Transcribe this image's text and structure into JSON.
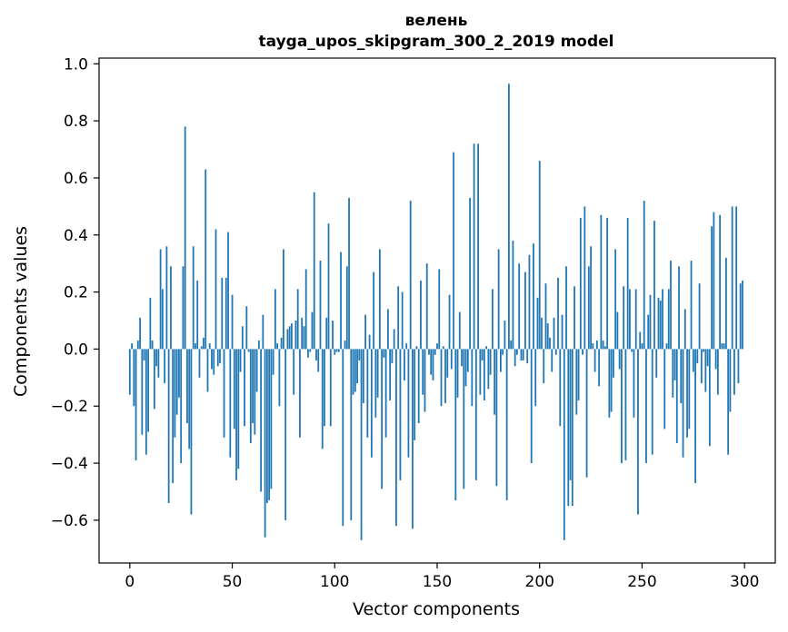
{
  "chart_data": {
    "type": "bar",
    "title": "велень",
    "subtitle": "tayga_upos_skipgram_300_2_2019 model",
    "xlabel": "Vector components",
    "ylabel": "Components values",
    "xlim": [
      -15,
      315
    ],
    "ylim": [
      -0.75,
      1.02
    ],
    "xticks": [
      0,
      50,
      100,
      150,
      200,
      250,
      300
    ],
    "xtick_labels": [
      "0",
      "50",
      "100",
      "150",
      "200",
      "250",
      "300"
    ],
    "yticks": [
      -0.6,
      -0.4,
      -0.2,
      0.0,
      0.2,
      0.4,
      0.6,
      0.8,
      1.0
    ],
    "ytick_labels": [
      "−0.6",
      "−0.4",
      "−0.2",
      "0.0",
      "0.2",
      "0.4",
      "0.6",
      "0.8",
      "1.0"
    ],
    "grid": false,
    "bar_color": "#1f77b4",
    "x": [
      0,
      1,
      2,
      3,
      4,
      5,
      6,
      7,
      8,
      9,
      10,
      11,
      12,
      13,
      14,
      15,
      16,
      17,
      18,
      19,
      20,
      21,
      22,
      23,
      24,
      25,
      26,
      27,
      28,
      29,
      30,
      31,
      32,
      33,
      34,
      35,
      36,
      37,
      38,
      39,
      40,
      41,
      42,
      43,
      44,
      45,
      46,
      47,
      48,
      49,
      50,
      51,
      52,
      53,
      54,
      55,
      56,
      57,
      58,
      59,
      60,
      61,
      62,
      63,
      64,
      65,
      66,
      67,
      68,
      69,
      70,
      71,
      72,
      73,
      74,
      75,
      76,
      77,
      78,
      79,
      80,
      81,
      82,
      83,
      84,
      85,
      86,
      87,
      88,
      89,
      90,
      91,
      92,
      93,
      94,
      95,
      96,
      97,
      98,
      99,
      100,
      101,
      102,
      103,
      104,
      105,
      106,
      107,
      108,
      109,
      110,
      111,
      112,
      113,
      114,
      115,
      116,
      117,
      118,
      119,
      120,
      121,
      122,
      123,
      124,
      125,
      126,
      127,
      128,
      129,
      130,
      131,
      132,
      133,
      134,
      135,
      136,
      137,
      138,
      139,
      140,
      141,
      142,
      143,
      144,
      145,
      146,
      147,
      148,
      149,
      150,
      151,
      152,
      153,
      154,
      155,
      156,
      157,
      158,
      159,
      160,
      161,
      162,
      163,
      164,
      165,
      166,
      167,
      168,
      169,
      170,
      171,
      172,
      173,
      174,
      175,
      176,
      177,
      178,
      179,
      180,
      181,
      182,
      183,
      184,
      185,
      186,
      187,
      188,
      189,
      190,
      191,
      192,
      193,
      194,
      195,
      196,
      197,
      198,
      199,
      200,
      201,
      202,
      203,
      204,
      205,
      206,
      207,
      208,
      209,
      210,
      211,
      212,
      213,
      214,
      215,
      216,
      217,
      218,
      219,
      220,
      221,
      222,
      223,
      224,
      225,
      226,
      227,
      228,
      229,
      230,
      231,
      232,
      233,
      234,
      235,
      236,
      237,
      238,
      239,
      240,
      241,
      242,
      243,
      244,
      245,
      246,
      247,
      248,
      249,
      250,
      251,
      252,
      253,
      254,
      255,
      256,
      257,
      258,
      259,
      260,
      261,
      262,
      263,
      264,
      265,
      266,
      267,
      268,
      269,
      270,
      271,
      272,
      273,
      274,
      275,
      276,
      277,
      278,
      279,
      280,
      281,
      282,
      283,
      284,
      285,
      286,
      287,
      288,
      289,
      290,
      291,
      292,
      293,
      294,
      295,
      296,
      297,
      298,
      299
    ],
    "values": [
      -0.16,
      0.02,
      -0.2,
      -0.39,
      0.03,
      0.11,
      -0.3,
      -0.04,
      -0.37,
      -0.29,
      0.18,
      0.03,
      -0.21,
      -0.06,
      -0.1,
      0.35,
      0.21,
      -0.12,
      0.36,
      -0.54,
      0.29,
      -0.47,
      -0.31,
      -0.23,
      -0.17,
      -0.4,
      0.29,
      0.78,
      -0.26,
      -0.35,
      -0.58,
      0.36,
      0.02,
      0.24,
      -0.1,
      0.01,
      0.04,
      0.63,
      -0.15,
      0.02,
      -0.07,
      -0.09,
      0.42,
      -0.06,
      -0.05,
      0.25,
      -0.31,
      0.25,
      0.41,
      -0.38,
      0.19,
      -0.28,
      -0.46,
      -0.42,
      -0.08,
      0.08,
      -0.27,
      0.15,
      -0.01,
      -0.33,
      -0.26,
      -0.3,
      -0.15,
      0.03,
      -0.5,
      0.12,
      -0.66,
      -0.54,
      -0.53,
      -0.49,
      -0.09,
      0.21,
      0.02,
      -0.2,
      0.04,
      0.35,
      -0.6,
      0.07,
      0.08,
      0.09,
      -0.16,
      0.1,
      0.21,
      -0.31,
      0.11,
      0.08,
      0.28,
      -0.03,
      -0.01,
      0.13,
      0.55,
      -0.04,
      -0.08,
      0.31,
      -0.35,
      -0.27,
      0.11,
      0.44,
      -0.27,
      0.1,
      -0.02,
      -0.01,
      -0.01,
      0.34,
      -0.62,
      0.03,
      0.29,
      0.53,
      -0.6,
      -0.16,
      -0.15,
      -0.12,
      -0.04,
      -0.67,
      -0.19,
      0.12,
      -0.31,
      0.05,
      -0.38,
      0.27,
      -0.24,
      -0.17,
      0.35,
      -0.49,
      -0.03,
      -0.31,
      0.14,
      -0.18,
      -0.05,
      0.07,
      -0.62,
      0.22,
      -0.46,
      0.2,
      -0.11,
      0.02,
      -0.38,
      0.52,
      -0.63,
      -0.32,
      0.01,
      -0.26,
      0.24,
      -0.16,
      -0.22,
      0.3,
      -0.02,
      -0.09,
      -0.11,
      -0.02,
      0.02,
      0.28,
      -0.2,
      0.01,
      -0.19,
      -0.1,
      0.19,
      -0.07,
      0.69,
      -0.53,
      -0.17,
      0.13,
      -0.06,
      -0.49,
      -0.13,
      -0.08,
      0.53,
      -0.2,
      0.72,
      -0.46,
      0.72,
      -0.16,
      -0.04,
      -0.18,
      0.01,
      -0.14,
      -0.09,
      0.21,
      -0.23,
      -0.48,
      0.35,
      -0.08,
      -0.02,
      0.1,
      -0.53,
      0.93,
      0.03,
      0.38,
      -0.06,
      -0.02,
      0.3,
      -0.04,
      -0.04,
      0.27,
      -0.05,
      0.33,
      -0.4,
      0.37,
      -0.2,
      0.18,
      0.66,
      0.11,
      -0.12,
      0.23,
      0.09,
      0.04,
      -0.08,
      0.11,
      -0.02,
      0.25,
      -0.27,
      0.12,
      -0.67,
      0.29,
      -0.55,
      -0.46,
      -0.55,
      0.22,
      -0.23,
      -0.18,
      0.46,
      -0.02,
      0.5,
      -0.45,
      0.29,
      0.36,
      0.02,
      -0.08,
      0.03,
      -0.13,
      0.47,
      0.03,
      0.01,
      0.46,
      -0.24,
      -0.22,
      -0.1,
      0.35,
      0.13,
      -0.07,
      -0.4,
      0.22,
      -0.39,
      0.46,
      0.21,
      -0.01,
      -0.24,
      0.21,
      -0.58,
      0.06,
      0.02,
      0.52,
      -0.4,
      0.12,
      0.19,
      -0.37,
      0.45,
      -0.1,
      0.18,
      0.17,
      0.21,
      -0.28,
      0.02,
      0.21,
      0.31,
      -0.17,
      -0.11,
      -0.33,
      0.29,
      -0.19,
      -0.38,
      0.14,
      -0.31,
      -0.28,
      0.31,
      -0.08,
      -0.47,
      -0.05,
      0.23,
      -0.12,
      -0.01,
      -0.15,
      -0.06,
      -0.34,
      0.43,
      0.48,
      -0.07,
      -0.16,
      0.47,
      0.02,
      0.02,
      0.32,
      -0.37,
      -0.22,
      0.5,
      -0.16,
      0.5,
      -0.12,
      0.23,
      0.24
    ]
  }
}
